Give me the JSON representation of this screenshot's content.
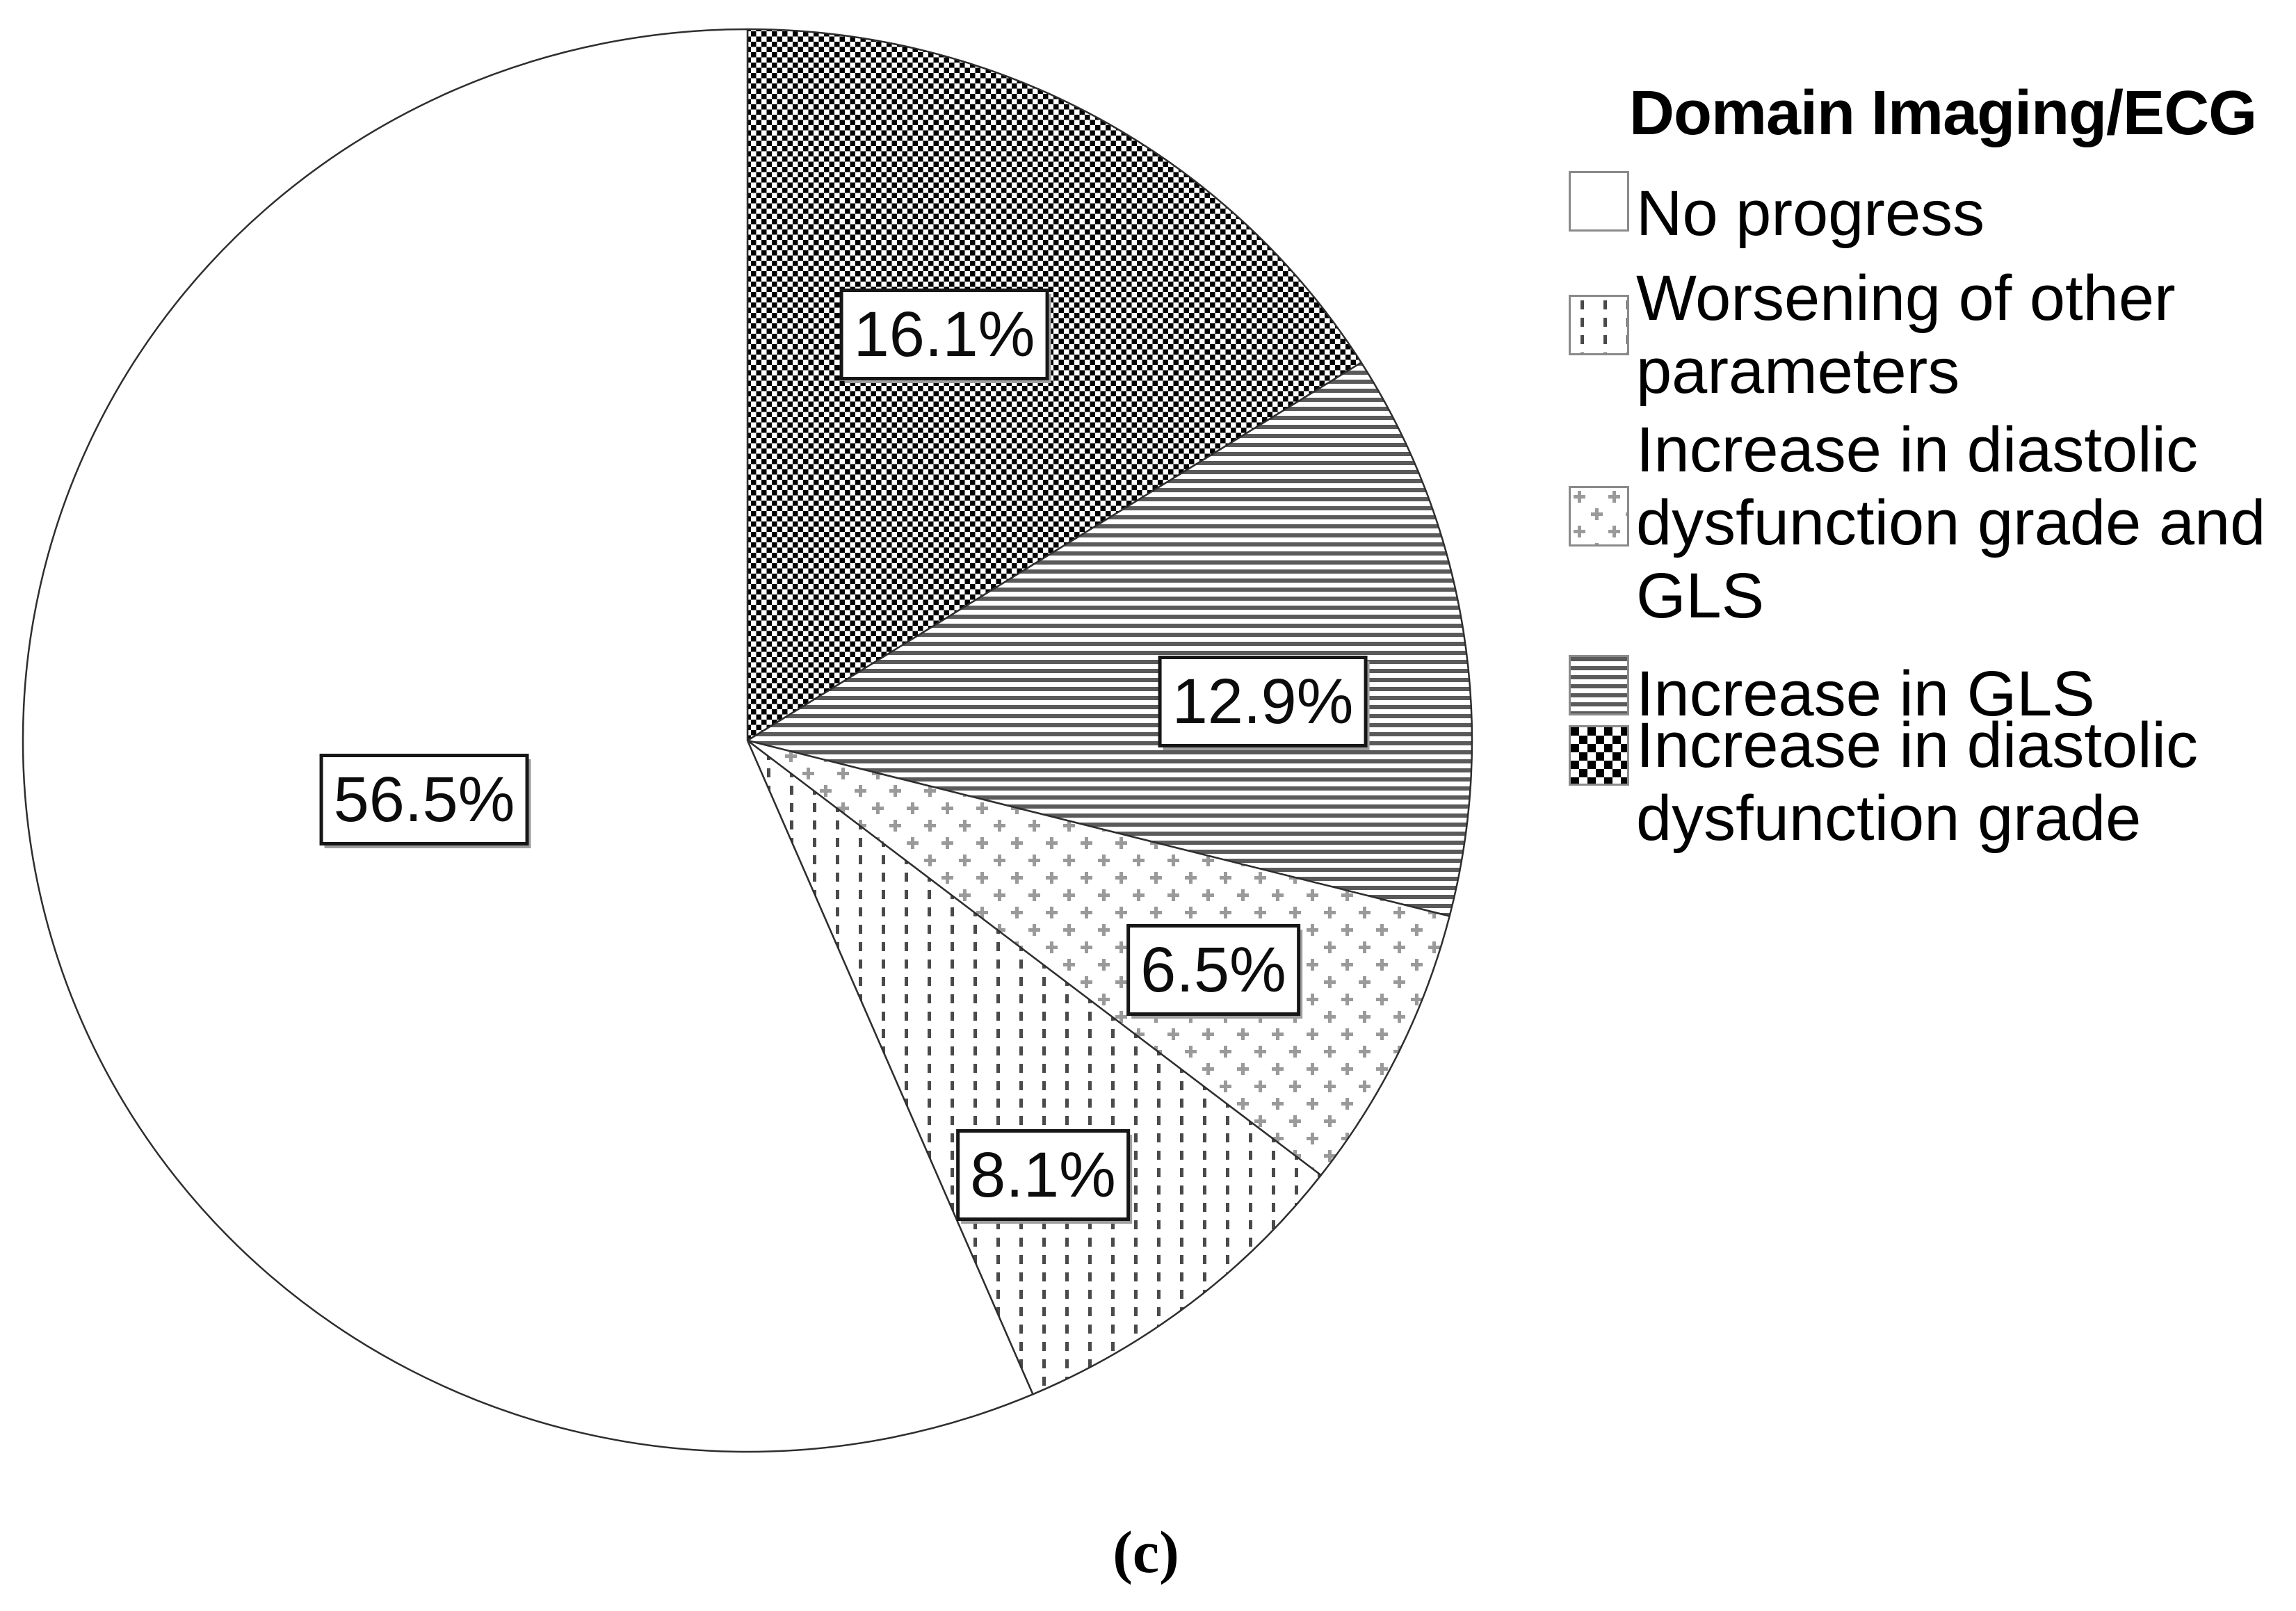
{
  "figure": {
    "caption": "(c)"
  },
  "chart_data": {
    "type": "pie",
    "title": "Domain Imaging/ECG",
    "unit": "%",
    "direction": "clockwise",
    "start_angle_deg_from_top": 0,
    "slices": [
      {
        "label": "No progress",
        "value": 56.5,
        "pattern": "plain-white"
      },
      {
        "label": "Worsening of other parameters",
        "value": 8.1,
        "pattern": "vertical-dashes"
      },
      {
        "label": "Increase in diastolic dysfunction grade and GLS",
        "value": 6.5,
        "pattern": "gray-crosses"
      },
      {
        "label": "Increase in GLS",
        "value": 12.9,
        "pattern": "horizontal-lines"
      },
      {
        "label": "Increase in diastolic dysfunction grade",
        "value": 16.1,
        "pattern": "black-checkerboard"
      }
    ],
    "order_clockwise_from_top": [
      "Increase in diastolic dysfunction grade",
      "Increase in GLS",
      "Increase in diastolic dysfunction grade and GLS",
      "Worsening of other parameters",
      "No progress"
    ],
    "legend_position": "right",
    "colors": {
      "foreground": "#000000",
      "background": "#ffffff",
      "stripe_gray": "#5a5a5a",
      "cross_gray": "#9a9a9a",
      "dash_gray": "#4a4a4a"
    }
  },
  "legend": {
    "title": "Domain Imaging/ECG",
    "items": [
      {
        "swatch": "plain-white-swatch",
        "lines": [
          "No progress"
        ]
      },
      {
        "swatch": "vertical-dashes-swatch",
        "lines": [
          "Worsening of other",
          "parameters"
        ]
      },
      {
        "swatch": "gray-crosses-swatch",
        "lines": [
          "Increase in diastolic",
          "dysfunction grade and",
          "GLS"
        ]
      },
      {
        "swatch": "horizontal-lines-swatch",
        "lines": [
          "Increase in GLS"
        ]
      },
      {
        "swatch": "black-checkerboard-swatch",
        "lines": [
          "Increase in diastolic",
          "dysfunction grade"
        ]
      }
    ]
  },
  "slice_value_labels": [
    "56.5%",
    "16.1%",
    "12.9%",
    "6.5%",
    "8.1%"
  ]
}
